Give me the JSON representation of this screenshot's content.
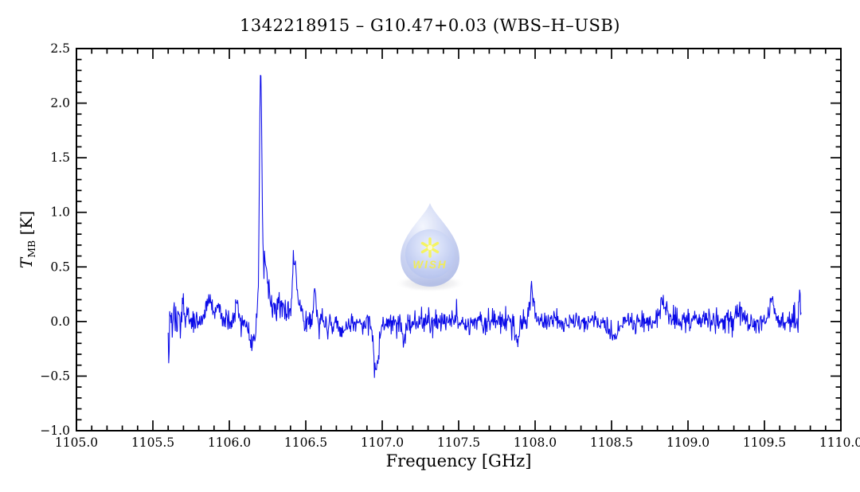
{
  "header": {
    "title": "1342218915 – G10.47+0.03 (WBS–H–USB)"
  },
  "watermark": {
    "label": "WISH",
    "drop_color": "#aab8e8",
    "lens_color": "#c3cff2",
    "text_color": "#efe93a",
    "star_color": "#f5f23c",
    "shadow_color": "#babac2"
  },
  "chart_data": {
    "type": "line",
    "title": "1342218915 – G10.47+0.03 (WBS–H–USB)",
    "xlabel": "Frequency [GHz]",
    "ylabel": {
      "symbol": "T",
      "subscript": "MB",
      "unit": " [K]"
    },
    "xlim": [
      1105.0,
      1110.0
    ],
    "ylim": [
      -1.0,
      2.5
    ],
    "grid": false,
    "x_major_ticks": [
      1105.0,
      1105.5,
      1106.0,
      1106.5,
      1107.0,
      1107.5,
      1108.0,
      1108.5,
      1109.0,
      1109.5,
      1110.0
    ],
    "x_tick_labels": [
      "1105.0",
      "1105.5",
      "1106.0",
      "1106.5",
      "1107.0",
      "1107.5",
      "1108.0",
      "1108.5",
      "1109.0",
      "1109.5",
      "1110.0"
    ],
    "x_minor_step": 0.1,
    "y_major_ticks": [
      -1.0,
      -0.5,
      0.0,
      0.5,
      1.0,
      1.5,
      2.0,
      2.5
    ],
    "y_tick_labels": [
      "−1.0",
      "−0.5",
      "0.0",
      "0.5",
      "1.0",
      "1.5",
      "2.0",
      "2.5"
    ],
    "y_minor_step": 0.1,
    "line_color": "#0a0ae8",
    "frame_color": "#000000",
    "series": [
      {
        "name": "WBS-H-USB spectrum",
        "x_start": 1105.6,
        "x_end": 1109.74,
        "n_points": 1250,
        "baseline": 0.0,
        "noise_rms": 0.052,
        "noise_seed": 20110915,
        "noise_extra": [
          {
            "center": 1105.66,
            "amp": 0.045,
            "sigma": 0.07
          },
          {
            "center": 1106.33,
            "amp": 0.025,
            "sigma": 0.06
          },
          {
            "center": 1109.7,
            "amp": 0.025,
            "sigma": 0.05
          }
        ],
        "features": [
          {
            "center": 1105.605,
            "amp": -0.28,
            "sigma": 0.004
          },
          {
            "center": 1105.7,
            "amp": 0.1,
            "sigma": 0.012
          },
          {
            "center": 1105.87,
            "amp": 0.2,
            "sigma": 0.022
          },
          {
            "center": 1105.93,
            "amp": 0.15,
            "sigma": 0.012
          },
          {
            "center": 1106.05,
            "amp": 0.12,
            "sigma": 0.014
          },
          {
            "center": 1106.155,
            "amp": -0.36,
            "sigma": 0.022
          },
          {
            "center": 1106.205,
            "amp": 2.05,
            "sigma": 0.0075
          },
          {
            "center": 1106.21,
            "amp": 0.3,
            "sigma": 0.045
          },
          {
            "center": 1106.235,
            "amp": 0.3,
            "sigma": 0.012
          },
          {
            "center": 1106.32,
            "amp": 0.1,
            "sigma": 0.04
          },
          {
            "center": 1106.425,
            "amp": 0.5,
            "sigma": 0.011
          },
          {
            "center": 1106.445,
            "amp": 0.15,
            "sigma": 0.03
          },
          {
            "center": 1106.56,
            "amp": 0.25,
            "sigma": 0.011
          },
          {
            "center": 1106.75,
            "amp": -0.05,
            "sigma": 0.08
          },
          {
            "center": 1106.96,
            "amp": -0.42,
            "sigma": 0.018
          },
          {
            "center": 1107.14,
            "amp": -0.2,
            "sigma": 0.012
          },
          {
            "center": 1107.88,
            "amp": -0.17,
            "sigma": 0.014
          },
          {
            "center": 1107.975,
            "amp": 0.3,
            "sigma": 0.012
          },
          {
            "center": 1108.52,
            "amp": -0.13,
            "sigma": 0.025
          },
          {
            "center": 1108.84,
            "amp": 0.16,
            "sigma": 0.028
          },
          {
            "center": 1109.35,
            "amp": 0.1,
            "sigma": 0.02
          },
          {
            "center": 1109.55,
            "amp": 0.17,
            "sigma": 0.018
          },
          {
            "center": 1109.73,
            "amp": 0.2,
            "sigma": 0.006
          }
        ]
      }
    ]
  }
}
